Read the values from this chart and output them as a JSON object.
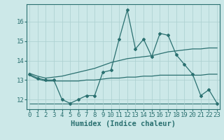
{
  "x": [
    0,
    1,
    2,
    3,
    4,
    5,
    6,
    7,
    8,
    9,
    10,
    11,
    12,
    13,
    14,
    15,
    16,
    17,
    18,
    19,
    20,
    21,
    22,
    23
  ],
  "main_line": [
    13.3,
    13.1,
    13.0,
    13.0,
    12.0,
    11.8,
    12.0,
    12.2,
    12.2,
    13.4,
    13.5,
    15.1,
    16.6,
    14.6,
    15.1,
    14.2,
    15.4,
    15.3,
    14.3,
    13.8,
    13.3,
    12.2,
    12.5,
    11.8
  ],
  "upper_line": [
    13.35,
    13.2,
    13.1,
    13.15,
    13.2,
    13.3,
    13.4,
    13.5,
    13.6,
    13.75,
    13.9,
    14.0,
    14.1,
    14.15,
    14.2,
    14.25,
    14.35,
    14.45,
    14.5,
    14.55,
    14.6,
    14.6,
    14.65,
    14.65
  ],
  "lower_line": [
    13.25,
    13.05,
    12.95,
    12.95,
    12.95,
    12.95,
    12.95,
    13.0,
    13.0,
    13.05,
    13.1,
    13.1,
    13.15,
    13.15,
    13.2,
    13.2,
    13.25,
    13.25,
    13.25,
    13.25,
    13.25,
    13.25,
    13.3,
    13.3
  ],
  "flat_line_y": [
    11.8,
    11.8,
    11.8,
    11.8,
    11.8,
    11.8,
    11.8,
    11.8,
    11.8,
    11.8,
    11.8,
    11.8,
    11.8,
    11.8,
    11.8,
    11.8,
    11.8,
    11.8,
    11.8,
    11.8,
    11.8,
    11.8,
    11.8,
    11.8
  ],
  "bg_color": "#cce8e8",
  "line_color": "#2a7070",
  "grid_color": "#aacfcf",
  "xlabel": "Humidex (Indice chaleur)",
  "yticks": [
    12,
    13,
    14,
    15,
    16
  ],
  "xticks": [
    0,
    1,
    2,
    3,
    4,
    5,
    6,
    7,
    8,
    9,
    10,
    11,
    12,
    13,
    14,
    15,
    16,
    17,
    18,
    19,
    20,
    21,
    22,
    23
  ],
  "xlim": [
    -0.3,
    23.3
  ],
  "ylim": [
    11.5,
    16.9
  ],
  "tick_fontsize": 6.5,
  "xlabel_fontsize": 7.5
}
